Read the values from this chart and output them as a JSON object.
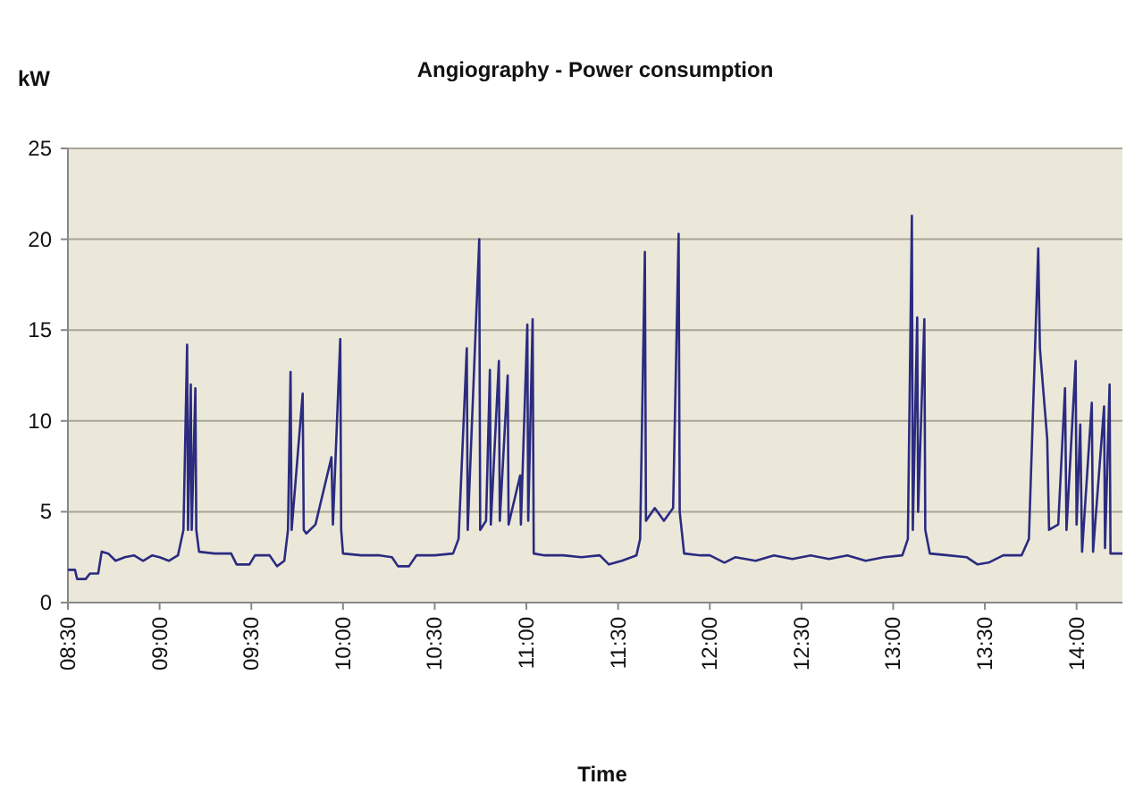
{
  "chart_data": {
    "type": "line",
    "title": "Angiography - Power consumption",
    "xlabel": "Time",
    "ylabel": "kW",
    "xlim": [
      8.5,
      14.25
    ],
    "xticks": [
      {
        "value": 8.5,
        "label": "08:30"
      },
      {
        "value": 9,
        "label": "09:00"
      },
      {
        "value": 9.5,
        "label": "09:30"
      },
      {
        "value": 10,
        "label": "10:00"
      },
      {
        "value": 10.5,
        "label": "10:30"
      },
      {
        "value": 11,
        "label": "11:00"
      },
      {
        "value": 11.5,
        "label": "11:30"
      },
      {
        "value": 12,
        "label": "12:00"
      },
      {
        "value": 12.5,
        "label": "12:30"
      },
      {
        "value": 13,
        "label": "13:00"
      },
      {
        "value": 13.5,
        "label": "13:30"
      },
      {
        "value": 14,
        "label": "14:00"
      }
    ],
    "ylim": [
      0,
      25
    ],
    "yticks": [
      0,
      5,
      10,
      15,
      20,
      25
    ],
    "grid": "y",
    "marker": "none",
    "line_style": "solid",
    "series": [
      {
        "color": "#2b2b80",
        "x": [
          8.5,
          8.539,
          8.55,
          8.597,
          8.62,
          8.665,
          8.684,
          8.72,
          8.76,
          8.81,
          8.86,
          8.91,
          8.96,
          9.0,
          9.05,
          9.1,
          9.13,
          9.15,
          9.155,
          9.17,
          9.175,
          9.195,
          9.2,
          9.215,
          9.3,
          9.39,
          9.42,
          9.49,
          9.52,
          9.6,
          9.64,
          9.68,
          9.7,
          9.714,
          9.72,
          9.78,
          9.786,
          9.8,
          9.85,
          9.937,
          9.945,
          9.985,
          9.99,
          10.0,
          10.1,
          10.2,
          10.267,
          10.3,
          10.36,
          10.4,
          10.5,
          10.6,
          10.63,
          10.675,
          10.68,
          10.743,
          10.748,
          10.78,
          10.801,
          10.806,
          10.85,
          10.855,
          10.898,
          10.903,
          10.966,
          10.97,
          11.005,
          11.01,
          11.034,
          11.04,
          11.1,
          11.2,
          11.3,
          11.4,
          11.45,
          11.52,
          11.6,
          11.62,
          11.646,
          11.652,
          11.7,
          11.75,
          11.8,
          11.83,
          11.836,
          11.86,
          11.95,
          12.0,
          12.08,
          12.14,
          12.25,
          12.35,
          12.45,
          12.55,
          12.65,
          12.75,
          12.85,
          12.95,
          13.05,
          13.08,
          13.102,
          13.107,
          13.131,
          13.136,
          13.17,
          13.175,
          13.2,
          13.3,
          13.4,
          13.46,
          13.52,
          13.6,
          13.7,
          13.74,
          13.791,
          13.8,
          13.84,
          13.85,
          13.9,
          13.937,
          13.945,
          13.995,
          14.0,
          14.02,
          14.03,
          14.083,
          14.09,
          14.15,
          14.155,
          14.18,
          14.185,
          14.25
        ],
        "values": [
          1.8,
          1.8,
          1.3,
          1.3,
          1.6,
          1.6,
          2.8,
          2.7,
          2.3,
          2.5,
          2.6,
          2.3,
          2.6,
          2.5,
          2.3,
          2.6,
          4,
          14.2,
          4,
          12,
          4,
          11.8,
          4,
          2.8,
          2.7,
          2.7,
          2.1,
          2.1,
          2.6,
          2.6,
          2.0,
          2.3,
          4,
          12.7,
          4,
          11.5,
          4,
          3.8,
          4.3,
          8,
          4.3,
          14.5,
          4,
          2.7,
          2.6,
          2.6,
          2.5,
          2.0,
          2.0,
          2.6,
          2.6,
          2.7,
          3.5,
          14,
          4,
          20,
          4,
          4.5,
          12.8,
          4.3,
          13.3,
          4.5,
          12.5,
          4.3,
          7,
          4.3,
          15.3,
          4.5,
          15.6,
          2.7,
          2.6,
          2.6,
          2.5,
          2.6,
          2.1,
          2.3,
          2.6,
          3.5,
          19.3,
          4.5,
          5.2,
          4.5,
          5.2,
          20.3,
          5,
          2.7,
          2.6,
          2.6,
          2.2,
          2.5,
          2.3,
          2.6,
          2.4,
          2.6,
          2.4,
          2.6,
          2.3,
          2.5,
          2.6,
          3.5,
          21.3,
          4,
          15.7,
          5,
          15.6,
          4,
          2.7,
          2.6,
          2.5,
          2.1,
          2.2,
          2.6,
          2.6,
          3.5,
          19.5,
          14,
          9,
          4,
          4.3,
          11.8,
          4,
          13.3,
          4.3,
          9.8,
          2.8,
          11,
          2.8,
          10.8,
          3,
          12,
          2.7,
          2.7
        ]
      }
    ]
  }
}
